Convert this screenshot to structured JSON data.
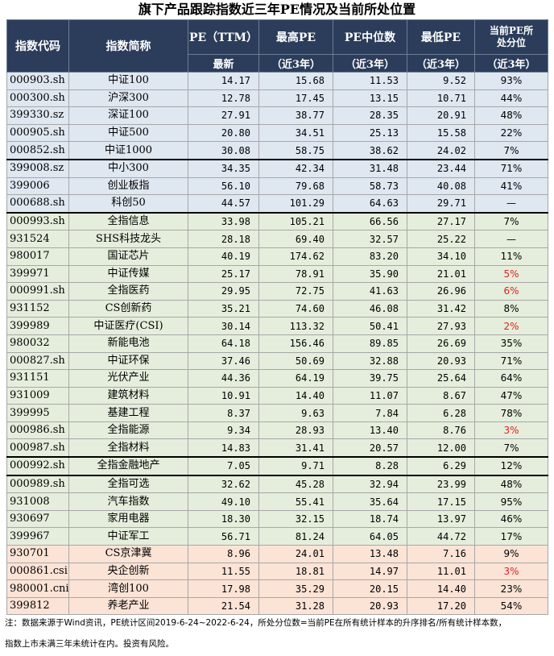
{
  "title": "旗下产品跟踪指数近三年PE情况及当前所处位置",
  "table": {
    "headers": {
      "code": "指数代码",
      "name": "指数简称",
      "pe_ttm": "PE（TTM）",
      "pe_ttm_sub": "最新",
      "pe_high": "最高PE",
      "pe_high_sub": "（近3年）",
      "pe_median": "PE中位数",
      "pe_median_sub": "（近3年）",
      "pe_low": "最低PE",
      "pe_low_sub": "（近3年）",
      "pct_line1": "当前PE所",
      "pct_line2": "处分位",
      "pct_sub": "（近3年）"
    },
    "rows": [
      {
        "code": "000903.sh",
        "name": "中证100",
        "pe": "14.17",
        "high": "15.68",
        "median": "11.53",
        "low": "9.52",
        "pct": "93%",
        "group": 0
      },
      {
        "code": "000300.sh",
        "name": "沪深300",
        "pe": "12.78",
        "high": "17.45",
        "median": "13.15",
        "low": "10.71",
        "pct": "44%",
        "group": 0
      },
      {
        "code": "399330.sz",
        "name": "深证100",
        "pe": "27.91",
        "high": "38.77",
        "median": "28.35",
        "low": "20.91",
        "pct": "48%",
        "group": 0
      },
      {
        "code": "000905.sh",
        "name": "中证500",
        "pe": "20.80",
        "high": "34.51",
        "median": "25.13",
        "low": "15.58",
        "pct": "22%",
        "group": 0
      },
      {
        "code": "000852.sh",
        "name": "中证1000",
        "pe": "30.08",
        "high": "58.75",
        "median": "38.62",
        "low": "24.02",
        "pct": "7%",
        "group": 0
      },
      {
        "code": "399008.sz",
        "name": "中小300",
        "pe": "34.35",
        "high": "42.34",
        "median": "31.48",
        "low": "23.44",
        "pct": "71%",
        "group": 0,
        "sep": true
      },
      {
        "code": "399006",
        "name": "创业板指",
        "pe": "56.10",
        "high": "79.68",
        "median": "58.73",
        "low": "40.08",
        "pct": "41%",
        "group": 0
      },
      {
        "code": "000688.sh",
        "name": "科创50",
        "pe": "44.57",
        "high": "101.29",
        "median": "64.63",
        "low": "29.71",
        "pct": "—",
        "group": 0
      },
      {
        "code": "000993.sh",
        "name": "全指信息",
        "pe": "33.98",
        "high": "105.21",
        "median": "66.56",
        "low": "27.17",
        "pct": "7%",
        "group": 1,
        "sep": true
      },
      {
        "code": "931524",
        "name": "SHS科技龙头",
        "pe": "28.18",
        "high": "69.40",
        "median": "32.57",
        "low": "25.22",
        "pct": "—",
        "group": 1
      },
      {
        "code": "980017",
        "name": "国证芯片",
        "pe": "40.19",
        "high": "174.62",
        "median": "83.20",
        "low": "34.10",
        "pct": "11%",
        "group": 1
      },
      {
        "code": "399971",
        "name": "中证传媒",
        "pe": "25.17",
        "high": "78.91",
        "median": "35.90",
        "low": "21.01",
        "pct": "5%",
        "red": true,
        "group": 1
      },
      {
        "code": "000991.sh",
        "name": "全指医药",
        "pe": "29.95",
        "high": "72.75",
        "median": "41.63",
        "low": "26.96",
        "pct": "6%",
        "red": true,
        "group": 1
      },
      {
        "code": "931152",
        "name": "CS创新药",
        "pe": "35.21",
        "high": "74.60",
        "median": "46.08",
        "low": "31.42",
        "pct": "8%",
        "group": 1
      },
      {
        "code": "399989",
        "name": "中证医疗(CSI)",
        "pe": "30.14",
        "high": "113.32",
        "median": "50.41",
        "low": "27.93",
        "pct": "2%",
        "red": true,
        "group": 1
      },
      {
        "code": "980032",
        "name": "新能电池",
        "pe": "64.18",
        "high": "156.46",
        "median": "89.85",
        "low": "26.69",
        "pct": "35%",
        "group": 1
      },
      {
        "code": "000827.sh",
        "name": "中证环保",
        "pe": "37.46",
        "high": "50.69",
        "median": "32.88",
        "low": "20.93",
        "pct": "71%",
        "group": 1
      },
      {
        "code": "931151",
        "name": "光伏产业",
        "pe": "44.36",
        "high": "64.19",
        "median": "39.75",
        "low": "25.64",
        "pct": "64%",
        "group": 1
      },
      {
        "code": "931009",
        "name": "建筑材料",
        "pe": "10.91",
        "high": "14.40",
        "median": "11.07",
        "low": "8.67",
        "pct": "47%",
        "group": 1
      },
      {
        "code": "399995",
        "name": "基建工程",
        "pe": "8.37",
        "high": "9.63",
        "median": "7.84",
        "low": "6.28",
        "pct": "78%",
        "group": 1
      },
      {
        "code": "000986.sh",
        "name": "全指能源",
        "pe": "9.34",
        "high": "28.93",
        "median": "13.40",
        "low": "8.76",
        "pct": "3%",
        "red": true,
        "group": 1
      },
      {
        "code": "000987.sh",
        "name": "全指材料",
        "pe": "14.83",
        "high": "31.41",
        "median": "20.57",
        "low": "12.00",
        "pct": "7%",
        "group": 1
      },
      {
        "code": "000992.sh",
        "name": "全指金融地产",
        "pe": "7.05",
        "high": "9.71",
        "median": "8.28",
        "low": "6.29",
        "pct": "12%",
        "group": 1,
        "sep": true
      },
      {
        "code": "000989.sh",
        "name": "全指可选",
        "pe": "32.62",
        "high": "45.28",
        "median": "32.94",
        "low": "23.99",
        "pct": "48%",
        "group": 1,
        "sep": true
      },
      {
        "code": "931008",
        "name": "汽车指数",
        "pe": "49.10",
        "high": "55.41",
        "median": "35.64",
        "low": "17.15",
        "pct": "95%",
        "group": 1
      },
      {
        "code": "930697",
        "name": "家用电器",
        "pe": "18.30",
        "high": "32.15",
        "median": "18.74",
        "low": "13.97",
        "pct": "46%",
        "group": 1
      },
      {
        "code": "399967",
        "name": "中证军工",
        "pe": "56.71",
        "high": "81.24",
        "median": "64.05",
        "low": "44.72",
        "pct": "17%",
        "group": 1
      },
      {
        "code": "930701",
        "name": "CS京津冀",
        "pe": "8.96",
        "high": "24.01",
        "median": "13.48",
        "low": "7.16",
        "pct": "9%",
        "group": 2
      },
      {
        "code": "000861.csi",
        "name": "央企创新",
        "pe": "11.55",
        "high": "18.81",
        "median": "14.97",
        "low": "11.01",
        "pct": "3%",
        "red": true,
        "group": 2
      },
      {
        "code": "980001.cni",
        "name": "湾创100",
        "pe": "17.98",
        "high": "35.29",
        "median": "20.15",
        "low": "14.40",
        "pct": "23%",
        "group": 2
      },
      {
        "code": "399812",
        "name": "养老产业",
        "pe": "21.54",
        "high": "31.28",
        "median": "20.93",
        "low": "17.20",
        "pct": "54%",
        "group": 2
      }
    ]
  },
  "notes": {
    "line1": "注：数据来源于Wind资讯，PE统计区间2019-6-24~2022-6-24，所处分位数=当前PE在所有统计样本的升序排名/所有统计样本数，",
    "line2": "指数上市未满三年未统计在内。投资有风险。"
  }
}
